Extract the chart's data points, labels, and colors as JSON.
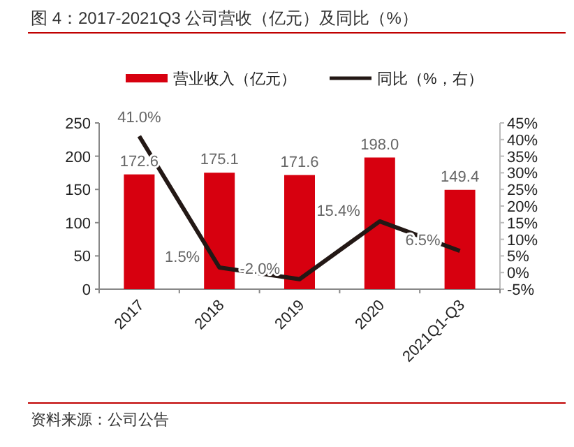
{
  "chart_data": {
    "type": "bar",
    "title": "图 4：2017-2021Q3 公司营收（亿元）及同比（%）",
    "categories": [
      "2017",
      "2018",
      "2019",
      "2020",
      "2021Q1-Q3"
    ],
    "series": [
      {
        "name": "营业收入（亿元）",
        "color": "#d7000f",
        "values": [
          172.6,
          175.1,
          171.6,
          198.0,
          149.4
        ],
        "value_labels": [
          "172.6",
          "175.1",
          "171.6",
          "198.0",
          "149.4"
        ]
      },
      {
        "name": "同比（%，右）",
        "type": "line",
        "axis": "y2",
        "color": "#231815",
        "values": [
          41.0,
          1.5,
          -2.0,
          15.4,
          6.5
        ],
        "value_labels": [
          "41.0%",
          "1.5%",
          "-2.0%",
          "15.4%",
          "6.5%"
        ]
      }
    ],
    "ylim": [
      0,
      250
    ],
    "yticks": [
      0,
      50,
      100,
      150,
      200,
      250
    ],
    "y2lim": [
      -5,
      45
    ],
    "y2ticks": [
      {
        "value": -5,
        "label": "-5%"
      },
      {
        "value": 0,
        "label": "0%"
      },
      {
        "value": 5,
        "label": "5%"
      },
      {
        "value": 10,
        "label": "10%"
      },
      {
        "value": 15,
        "label": "15%"
      },
      {
        "value": 20,
        "label": "20%"
      },
      {
        "value": 25,
        "label": "25%"
      },
      {
        "value": 30,
        "label": "30%"
      },
      {
        "value": 35,
        "label": "35%"
      },
      {
        "value": 40,
        "label": "40%"
      },
      {
        "value": 45,
        "label": "45%"
      }
    ],
    "legend": "top",
    "annotations": [
      "资料来源：公司公告"
    ]
  }
}
